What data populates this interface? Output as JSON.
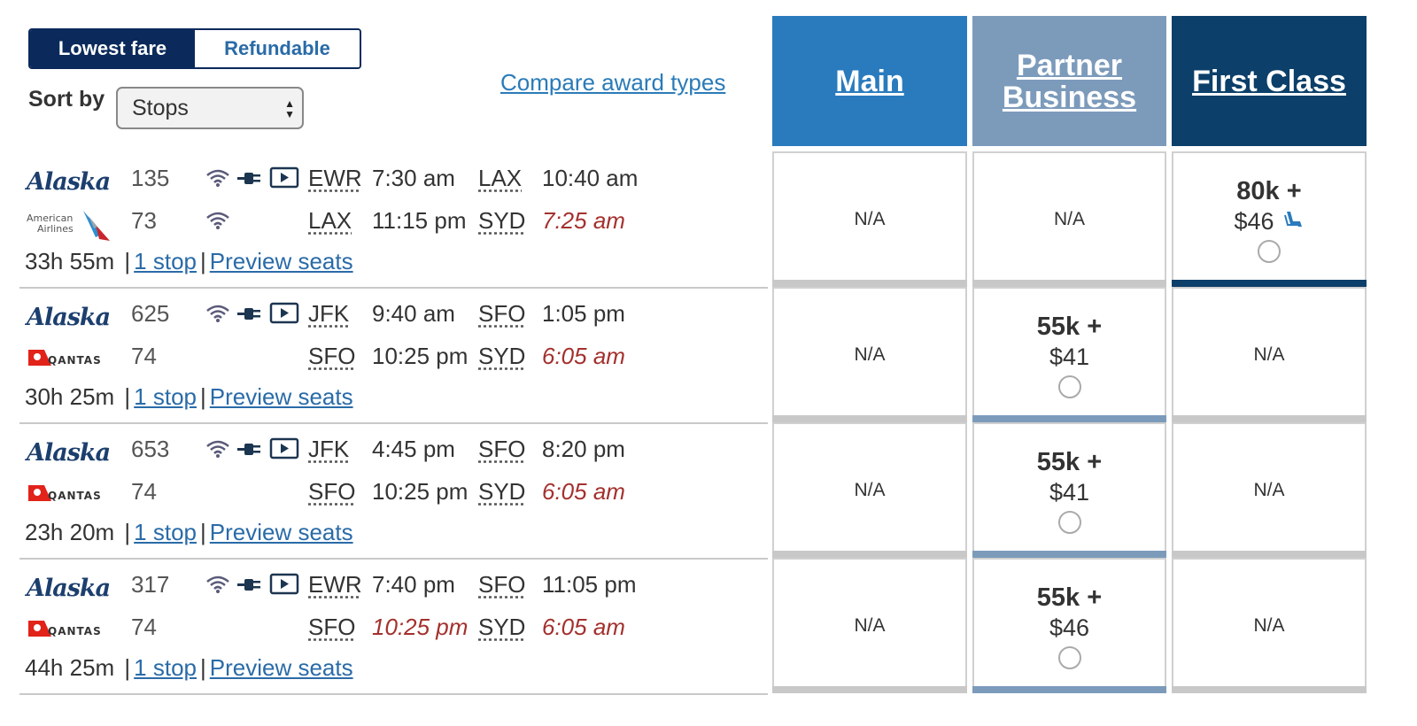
{
  "controls": {
    "fare_options": [
      "Lowest fare",
      "Refundable"
    ],
    "sort_label": "Sort by",
    "sort_value": "Stops",
    "compare_link": "Compare award types"
  },
  "columns": {
    "main": "Main",
    "partner": "Partner Business",
    "first": "First Class"
  },
  "colors": {
    "main": "#2a7bbd",
    "partner": "#7c9bbb",
    "first": "#0c3f69",
    "toggle_active": "#0b2a5b",
    "arrival_next_day": "#a3312e"
  },
  "flights": [
    {
      "duration": "33h 55m",
      "stops": "1 stop",
      "preview": "Preview seats",
      "segments": [
        {
          "airline": "Alaska",
          "flight": "135",
          "amenities": [
            "wifi-icon",
            "power-icon",
            "entertainment-icon"
          ],
          "from": "EWR",
          "dep": "7:30 am",
          "to": "LAX",
          "arr": "10:40 am",
          "arr_red": false,
          "dep_red": false
        },
        {
          "airline": "American Airlines",
          "flight": "73",
          "amenities": [
            "wifi-icon"
          ],
          "from": "LAX",
          "dep": "11:15 pm",
          "to": "SYD",
          "arr": "7:25 am",
          "arr_red": true,
          "dep_red": false
        }
      ],
      "fares": {
        "main": "N/A",
        "partner": "N/A",
        "first": {
          "miles": "80k +",
          "money": "$46",
          "seat_icon": "seat-icon"
        }
      }
    },
    {
      "duration": "30h 25m",
      "stops": "1 stop",
      "preview": "Preview seats",
      "segments": [
        {
          "airline": "Alaska",
          "flight": "625",
          "amenities": [
            "wifi-icon",
            "power-icon",
            "entertainment-icon"
          ],
          "from": "JFK",
          "dep": "9:40 am",
          "to": "SFO",
          "arr": "1:05 pm",
          "arr_red": false,
          "dep_red": false
        },
        {
          "airline": "Qantas",
          "flight": "74",
          "amenities": [],
          "from": "SFO",
          "dep": "10:25 pm",
          "to": "SYD",
          "arr": "6:05 am",
          "arr_red": true,
          "dep_red": false
        }
      ],
      "fares": {
        "main": "N/A",
        "partner": {
          "miles": "55k +",
          "money": "$41"
        },
        "first": "N/A"
      }
    },
    {
      "duration": "23h 20m",
      "stops": "1 stop",
      "preview": "Preview seats",
      "segments": [
        {
          "airline": "Alaska",
          "flight": "653",
          "amenities": [
            "wifi-icon",
            "power-icon",
            "entertainment-icon"
          ],
          "from": "JFK",
          "dep": "4:45 pm",
          "to": "SFO",
          "arr": "8:20 pm",
          "arr_red": false,
          "dep_red": false
        },
        {
          "airline": "Qantas",
          "flight": "74",
          "amenities": [],
          "from": "SFO",
          "dep": "10:25 pm",
          "to": "SYD",
          "arr": "6:05 am",
          "arr_red": true,
          "dep_red": false
        }
      ],
      "fares": {
        "main": "N/A",
        "partner": {
          "miles": "55k +",
          "money": "$41"
        },
        "first": "N/A"
      }
    },
    {
      "duration": "44h 25m",
      "stops": "1 stop",
      "preview": "Preview seats",
      "segments": [
        {
          "airline": "Alaska",
          "flight": "317",
          "amenities": [
            "wifi-icon",
            "power-icon",
            "entertainment-icon"
          ],
          "from": "EWR",
          "dep": "7:40 pm",
          "to": "SFO",
          "arr": "11:05 pm",
          "arr_red": false,
          "dep_red": false
        },
        {
          "airline": "Qantas",
          "flight": "74",
          "amenities": [],
          "from": "SFO",
          "dep": "10:25 pm",
          "to": "SYD",
          "arr": "6:05 am",
          "arr_red": true,
          "dep_red": true
        }
      ],
      "fares": {
        "main": "N/A",
        "partner": {
          "miles": "55k +",
          "money": "$46"
        },
        "first": "N/A"
      }
    }
  ]
}
